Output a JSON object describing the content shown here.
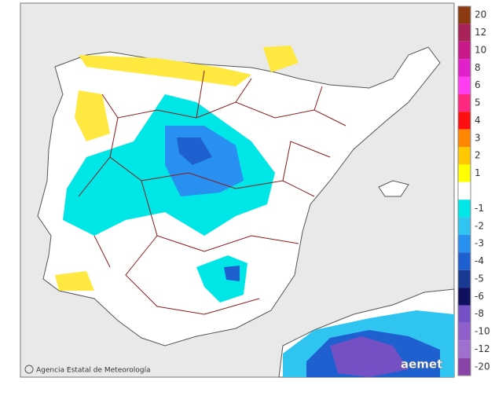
{
  "credit": "Agencia Estatal de Meteorología",
  "logo": "aemet",
  "legend": [
    {
      "label": "20",
      "color": "#8b3a12"
    },
    {
      "label": "12",
      "color": "#a8235a"
    },
    {
      "label": "10",
      "color": "#c8188a"
    },
    {
      "label": "8",
      "color": "#e020c8"
    },
    {
      "label": "6",
      "color": "#ff3cf0"
    },
    {
      "label": "5",
      "color": "#ff2a80"
    },
    {
      "label": "4",
      "color": "#ff1010"
    },
    {
      "label": "3",
      "color": "#ff8800"
    },
    {
      "label": "2",
      "color": "#ffc800"
    },
    {
      "label": "1",
      "color": "#ffff00"
    },
    {
      "label": "-1",
      "color": "#00e6e6"
    },
    {
      "label": "-2",
      "color": "#30c4f0"
    },
    {
      "label": "-3",
      "color": "#2890f0"
    },
    {
      "label": "-4",
      "color": "#1e60d0"
    },
    {
      "label": "-5",
      "color": "#183a90"
    },
    {
      "label": "-6",
      "color": "#101060"
    },
    {
      "label": "-8",
      "color": "#7450c4"
    },
    {
      "label": "-10",
      "color": "#9060cc"
    },
    {
      "label": "-12",
      "color": "#a070d0"
    },
    {
      "label": "-20",
      "color": "#8a44a8"
    }
  ]
}
